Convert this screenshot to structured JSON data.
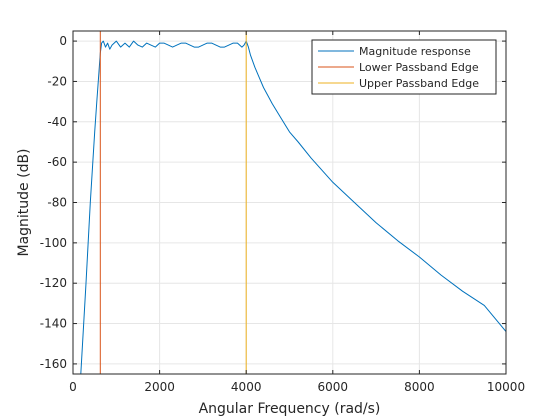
{
  "chart_data": {
    "type": "line",
    "xlabel": "Angular Frequency (rad/s)",
    "ylabel": "Magnitude (dB)",
    "xlim": [
      0,
      10000
    ],
    "ylim": [
      -165,
      5
    ],
    "xticks": [
      0,
      2000,
      4000,
      6000,
      8000,
      10000
    ],
    "xtick_labels": [
      "0",
      "2000",
      "4000",
      "6000",
      "8000",
      "10000"
    ],
    "yticks": [
      0,
      -20,
      -40,
      -60,
      -80,
      -100,
      -120,
      -140,
      -160
    ],
    "ytick_labels": [
      "0",
      "-20",
      "-40",
      "-60",
      "-80",
      "-100",
      "-120",
      "-140",
      "-160"
    ],
    "grid": true,
    "legend_position": "top-right",
    "series": [
      {
        "name": "Magnitude response",
        "color": "#0072bd",
        "kind": "curve",
        "x": [
          180,
          300,
          400,
          500,
          550,
          600,
          630,
          660,
          700,
          750,
          800,
          850,
          900,
          1000,
          1100,
          1200,
          1300,
          1400,
          1500,
          1600,
          1700,
          1800,
          1900,
          2000,
          2100,
          2200,
          2300,
          2400,
          2500,
          2600,
          2700,
          2800,
          2900,
          3000,
          3100,
          3200,
          3300,
          3400,
          3500,
          3600,
          3700,
          3800,
          3900,
          3950,
          4000,
          4050,
          4100,
          4200,
          4300,
          4400,
          4500,
          4600,
          4800,
          5000,
          5200,
          5500,
          6000,
          6500,
          7000,
          7500,
          8000,
          8500,
          9000,
          9500,
          10000
        ],
        "y": [
          -165,
          -120,
          -80,
          -45,
          -30,
          -15,
          -6,
          -1,
          0,
          -3,
          -1,
          -4,
          -2,
          0,
          -3,
          -1,
          -3,
          0,
          -2,
          -3,
          -1,
          -2,
          -3,
          -1,
          -1,
          -2,
          -3,
          -2,
          -1,
          -1,
          -2,
          -3,
          -3,
          -2,
          -1,
          -1,
          -2,
          -3,
          -3,
          -2,
          -1,
          -1,
          -3,
          -2,
          0,
          -3,
          -7,
          -13,
          -18,
          -23,
          -27,
          -31,
          -38,
          -45,
          -50,
          -58,
          -70,
          -80,
          -90,
          -99,
          -107,
          -116,
          -124,
          -131,
          -144
        ]
      },
      {
        "name": "Lower Passband Edge",
        "color": "#d95319",
        "kind": "vline",
        "x": [
          630,
          630
        ],
        "y": [
          -165,
          5
        ]
      },
      {
        "name": "Upper Passband Edge",
        "color": "#edb120",
        "kind": "vline",
        "x": [
          4000,
          4000
        ],
        "y": [
          -165,
          5
        ]
      }
    ]
  }
}
